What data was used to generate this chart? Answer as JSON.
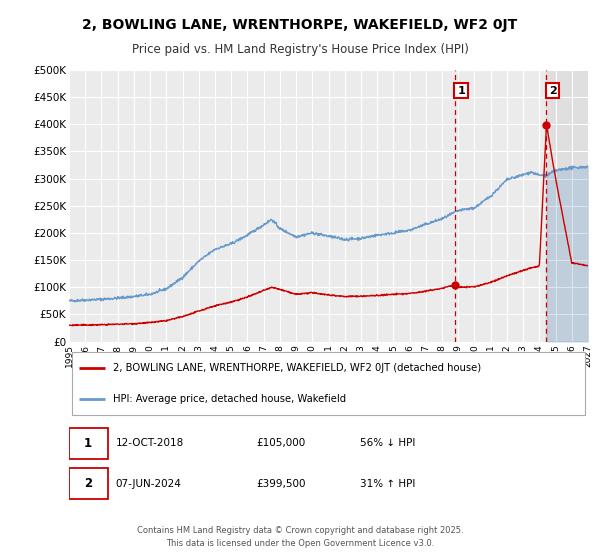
{
  "title": "2, BOWLING LANE, WRENTHORPE, WAKEFIELD, WF2 0JT",
  "subtitle": "Price paid vs. HM Land Registry's House Price Index (HPI)",
  "xlim": [
    1995,
    2027
  ],
  "ylim": [
    0,
    500000
  ],
  "yticks": [
    0,
    50000,
    100000,
    150000,
    200000,
    250000,
    300000,
    350000,
    400000,
    450000,
    500000
  ],
  "ytick_labels": [
    "£0",
    "£50K",
    "£100K",
    "£150K",
    "£200K",
    "£250K",
    "£300K",
    "£350K",
    "£400K",
    "£450K",
    "£500K"
  ],
  "xticks": [
    1995,
    1996,
    1997,
    1998,
    1999,
    2000,
    2001,
    2002,
    2003,
    2004,
    2005,
    2006,
    2007,
    2008,
    2009,
    2010,
    2011,
    2012,
    2013,
    2014,
    2015,
    2016,
    2017,
    2018,
    2019,
    2020,
    2021,
    2022,
    2023,
    2024,
    2025,
    2026,
    2027
  ],
  "background_color": "#ffffff",
  "plot_background_color": "#ebebeb",
  "grid_color": "#ffffff",
  "hpi_color": "#6699cc",
  "hpi_fill_color": "#99bbdd",
  "sale_color": "#cc0000",
  "marker1_date": 2018.79,
  "marker1_price": 105000,
  "marker2_date": 2024.44,
  "marker2_price": 399500,
  "vline1_x": 2018.79,
  "vline2_x": 2024.44,
  "legend_sale_label": "2, BOWLING LANE, WRENTHORPE, WAKEFIELD, WF2 0JT (detached house)",
  "legend_hpi_label": "HPI: Average price, detached house, Wakefield",
  "table_rows": [
    {
      "label": "1",
      "date": "12-OCT-2018",
      "price": "£105,000",
      "hpi": "56% ↓ HPI"
    },
    {
      "label": "2",
      "date": "07-JUN-2024",
      "price": "£399,500",
      "hpi": "31% ↑ HPI"
    }
  ],
  "footer": "Contains HM Land Registry data © Crown copyright and database right 2025.\nThis data is licensed under the Open Government Licence v3.0.",
  "shaded_region_start": 2024.44,
  "shaded_region_end": 2027,
  "hpi_key_points": [
    [
      1995.0,
      75000
    ],
    [
      1996.0,
      76500
    ],
    [
      1997.0,
      78000
    ],
    [
      1998.0,
      80000
    ],
    [
      1999.0,
      83000
    ],
    [
      2000.0,
      87000
    ],
    [
      2001.0,
      97000
    ],
    [
      2002.0,
      118000
    ],
    [
      2003.0,
      148000
    ],
    [
      2004.0,
      170000
    ],
    [
      2005.0,
      180000
    ],
    [
      2006.0,
      196000
    ],
    [
      2007.0,
      215000
    ],
    [
      2007.5,
      225000
    ],
    [
      2008.0,
      208000
    ],
    [
      2009.0,
      193000
    ],
    [
      2010.0,
      200000
    ],
    [
      2011.0,
      194000
    ],
    [
      2012.0,
      188000
    ],
    [
      2013.0,
      190000
    ],
    [
      2014.0,
      196000
    ],
    [
      2015.0,
      200000
    ],
    [
      2016.0,
      205000
    ],
    [
      2017.0,
      216000
    ],
    [
      2018.0,
      226000
    ],
    [
      2018.79,
      238000
    ],
    [
      2019.0,
      241000
    ],
    [
      2020.0,
      246000
    ],
    [
      2021.0,
      268000
    ],
    [
      2022.0,
      298000
    ],
    [
      2023.0,
      307000
    ],
    [
      2023.5,
      312000
    ],
    [
      2024.0,
      306000
    ],
    [
      2024.44,
      306000
    ],
    [
      2025.0,
      315000
    ],
    [
      2026.0,
      320000
    ],
    [
      2027.0,
      322000
    ]
  ],
  "sale_key_points": [
    [
      1995.0,
      30000
    ],
    [
      1996.0,
      30500
    ],
    [
      1997.0,
      31000
    ],
    [
      1998.0,
      32000
    ],
    [
      1999.0,
      33000
    ],
    [
      2000.0,
      35000
    ],
    [
      2001.0,
      38500
    ],
    [
      2002.0,
      46000
    ],
    [
      2003.0,
      56000
    ],
    [
      2004.0,
      66000
    ],
    [
      2005.0,
      73000
    ],
    [
      2006.0,
      82000
    ],
    [
      2007.0,
      94000
    ],
    [
      2007.5,
      100000
    ],
    [
      2008.0,
      96000
    ],
    [
      2009.0,
      87000
    ],
    [
      2010.0,
      90000
    ],
    [
      2011.0,
      86000
    ],
    [
      2012.0,
      83000
    ],
    [
      2013.0,
      83500
    ],
    [
      2014.0,
      85000
    ],
    [
      2015.0,
      87000
    ],
    [
      2016.0,
      88500
    ],
    [
      2017.0,
      93000
    ],
    [
      2018.0,
      98000
    ],
    [
      2018.79,
      105000
    ],
    [
      2019.0,
      100000
    ],
    [
      2020.0,
      101000
    ],
    [
      2021.0,
      109000
    ],
    [
      2022.0,
      121000
    ],
    [
      2023.0,
      131000
    ],
    [
      2023.5,
      136000
    ],
    [
      2024.0,
      139000
    ],
    [
      2024.44,
      399500
    ],
    [
      2025.0,
      300000
    ],
    [
      2026.0,
      145000
    ],
    [
      2027.0,
      140000
    ]
  ]
}
